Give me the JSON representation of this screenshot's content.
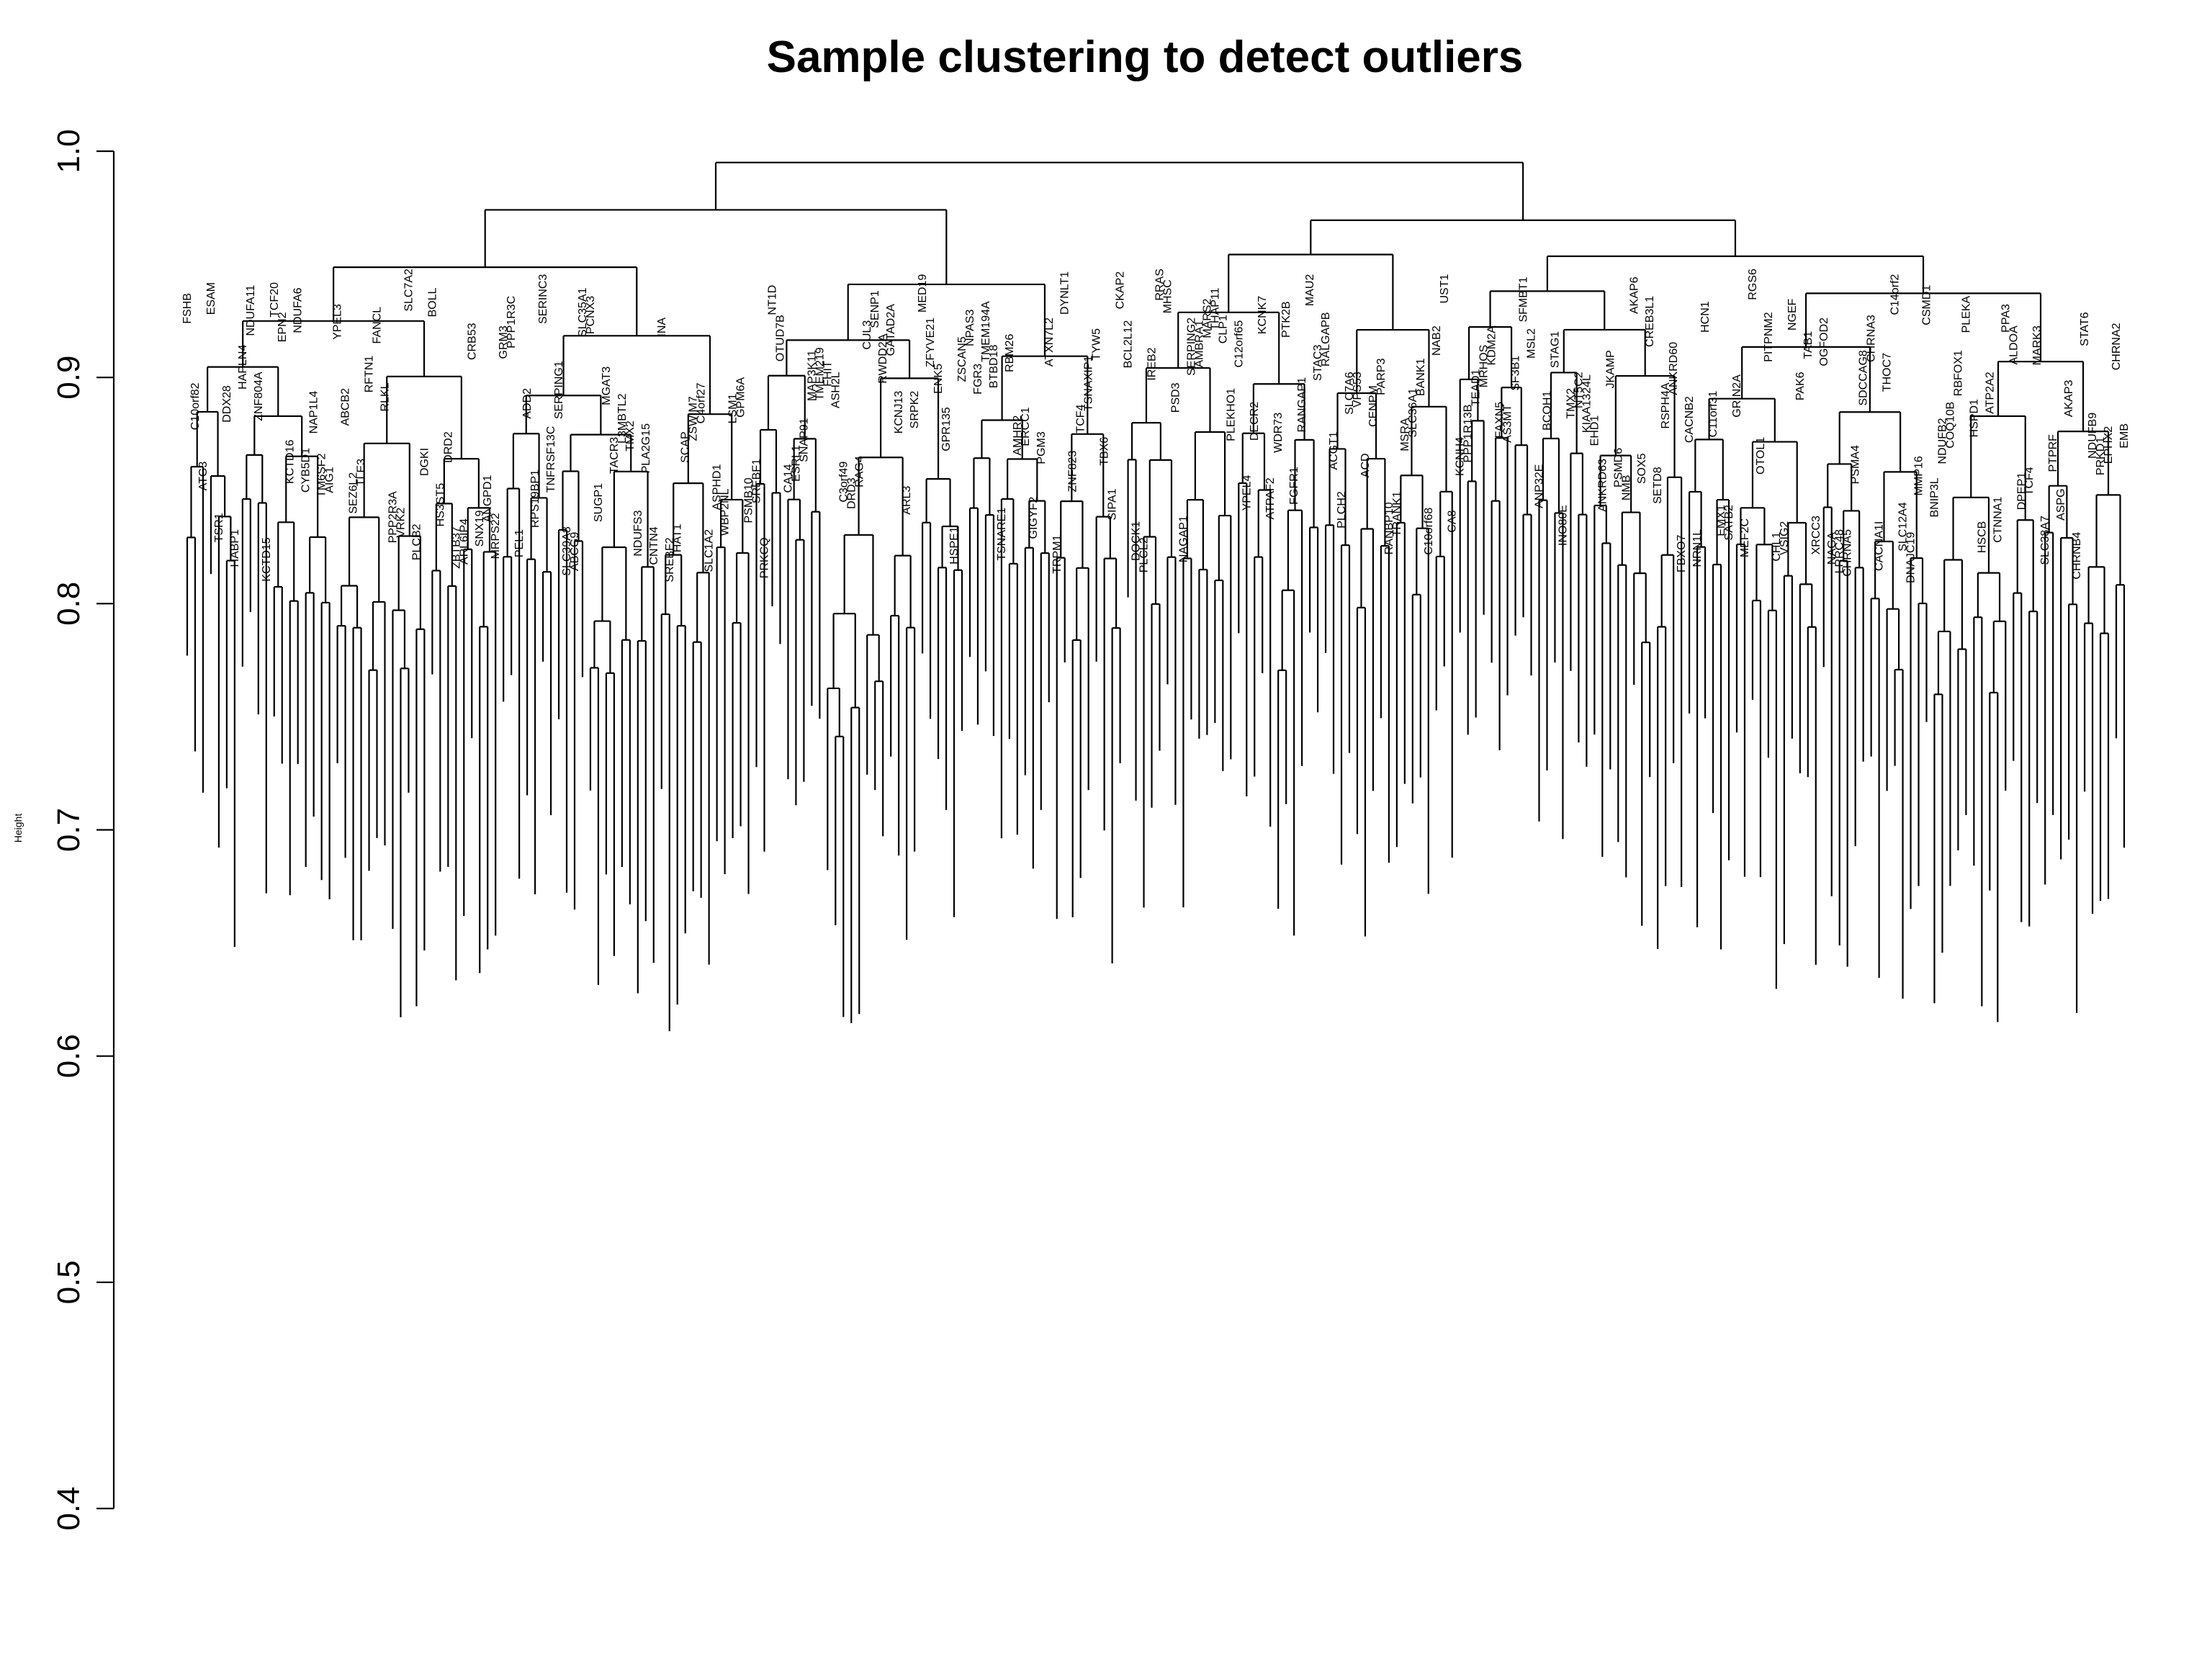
{
  "chart_data": {
    "type": "dendrogram",
    "title": "Sample clustering to detect outliers",
    "ylabel": "Height",
    "xlabel": "",
    "ylim": [
      0.4,
      1.0
    ],
    "yticks": [
      "0.4",
      "0.5",
      "0.6",
      "0.7",
      "0.8",
      "0.9",
      "1.0"
    ],
    "leaves": [
      "FSHB",
      "C10orf82",
      "ATG3",
      "ESAM",
      "TSR1",
      "DDX28",
      "HABP1",
      "HAPLN4",
      "NDUFA11",
      "ZNF804A",
      "KCTD15",
      "TCF20",
      "EPN2",
      "KCTD16",
      "NDUFA6",
      "CYB5D1",
      "NAP1L4",
      "TM6SF2",
      "AIG1",
      "YPEL3",
      "ABCB2",
      "SEZ6L2",
      "TLE3",
      "RFTN1",
      "FANCL",
      "RLKL",
      "PPP2R3A",
      "VRK2",
      "SLC7A2",
      "PLCB2",
      "DGKI",
      "BOLL",
      "HS3ST5",
      "DRD2",
      "ZBTB37",
      "ARL6IP4",
      "CRB53",
      "SNX19",
      "ANGPD1",
      "MRPS22",
      "GRM3",
      "PPP1R3C",
      "PEL1",
      "ADD2",
      "RPS19BP1",
      "SERINC3",
      "TNFRSF13C",
      "SERPING1",
      "SLC39A8",
      "ABCG9",
      "SLC35A1",
      "PCNX3",
      "SUGP1",
      "MGAT3",
      "TACR3",
      "L3MBTL2",
      "TMX2",
      "NDUFS3",
      "PLA2G15",
      "CNTN4",
      "INA",
      "SREBF2",
      "HAT1",
      "SCAP",
      "ZSWIM7",
      "C4orf27",
      "SLC1A2",
      "ASPHD1",
      "WBP2NL",
      "LSM1",
      "GPM6A",
      "PSMB10",
      "SREBF1",
      "PRKCQ",
      "NT1D",
      "OTUD7B",
      "CA14",
      "ESRL1",
      "SNAP91",
      "MAP3K11",
      "TMEM219",
      "FHIT",
      "ASH2L",
      "C3orf49",
      "DRD3",
      "RAG4",
      "CUL3",
      "SENP1",
      "RWDD2A",
      "GATAD2A",
      "KCNJ13",
      "ARL3",
      "SRPK2",
      "MED19",
      "ZFYVE21",
      "ENK5",
      "GPR135",
      "HSPE1",
      "ZSCAN5",
      "NPAS3",
      "FGR3",
      "TMEM194A",
      "BTBD18",
      "TSNARE1",
      "RBM26",
      "AMHR2",
      "ERCC1",
      "GIGYF2",
      "PGM3",
      "ATXN7L2",
      "TRPM1",
      "DYNLT1",
      "ZNF823",
      "TCF4",
      "TSNAXIP1",
      "TYW5",
      "TBX6",
      "SIPA1",
      "CKAP2",
      "BCL2L12",
      "DOCK1",
      "PLCL2",
      "IREB2",
      "RRAS",
      "MHSC",
      "PSD3",
      "NAGAP1",
      "SERPING2",
      "AMBRA1",
      "MARS2",
      "THAP11",
      "CLP1",
      "PLEKHO1",
      "C12orf65",
      "YPEL4",
      "DECR2",
      "KCNK7",
      "ATPAF2",
      "WDR73",
      "PTK2B",
      "FGFR1",
      "RANGAP1",
      "MAU2",
      "STAC3",
      "RALGAPB",
      "ACGT1",
      "PLCH2",
      "SLC7A6",
      "VPS53",
      "ACD",
      "CENPM",
      "PARP3",
      "RANBP10",
      "TRANK1",
      "MSRA",
      "SLC36A1",
      "BANK1",
      "C10orf68",
      "NAB2",
      "UST1",
      "CA8",
      "KCNH4",
      "PPP1R13B",
      "TEAD1",
      "MRHOS",
      "KDM2A",
      "FAXN5",
      "AS3MT",
      "SF3B1",
      "SFMBT1",
      "MSL2",
      "ANP32E",
      "BCOH1",
      "STAG1",
      "INO80E",
      "TMX2",
      "NT5C2",
      "KIAA1324L",
      "EHD1",
      "ANKRD63",
      "JKAMP",
      "PSMD6",
      "NMB",
      "AKAP6",
      "SOX5",
      "CREB3L1",
      "SETD8",
      "RSPH4A",
      "ANKRD60",
      "FBXO7",
      "CACNB2",
      "NRN1L",
      "HCN1",
      "C11orf31",
      "EMX1",
      "SATB2",
      "GRIN2A",
      "MEF2C",
      "RGS6",
      "OTOL1",
      "PITPNM2",
      "CHL1",
      "VSIG2",
      "NGEF",
      "PAK6",
      "TAB1",
      "XRCC3",
      "OGFOD2",
      "NAGA",
      "LRRC48",
      "CHRNA5",
      "PSMA4",
      "SDCCAG8",
      "CHRNA3",
      "CACNA1I",
      "THOC7",
      "C14orf2",
      "SLC12A4",
      "DNAJC19",
      "MMP16",
      "CSMD1",
      "BNIP3L",
      "NDUFB2",
      "COQ10B",
      "RBFOX1",
      "PLEKA",
      "HSPD1",
      "HSCB",
      "ATP2A2",
      "CTNNA1",
      "PPA3",
      "ALDOA",
      "DPEP1",
      "TCF4",
      "MARK3",
      "SLC38A7",
      "PTPRF",
      "ASPG",
      "AKAP3",
      "CHRNB4",
      "STAT6",
      "NDUFB9",
      "PRKD1",
      "EPHX2",
      "CHRNA2",
      "EMB"
    ]
  }
}
